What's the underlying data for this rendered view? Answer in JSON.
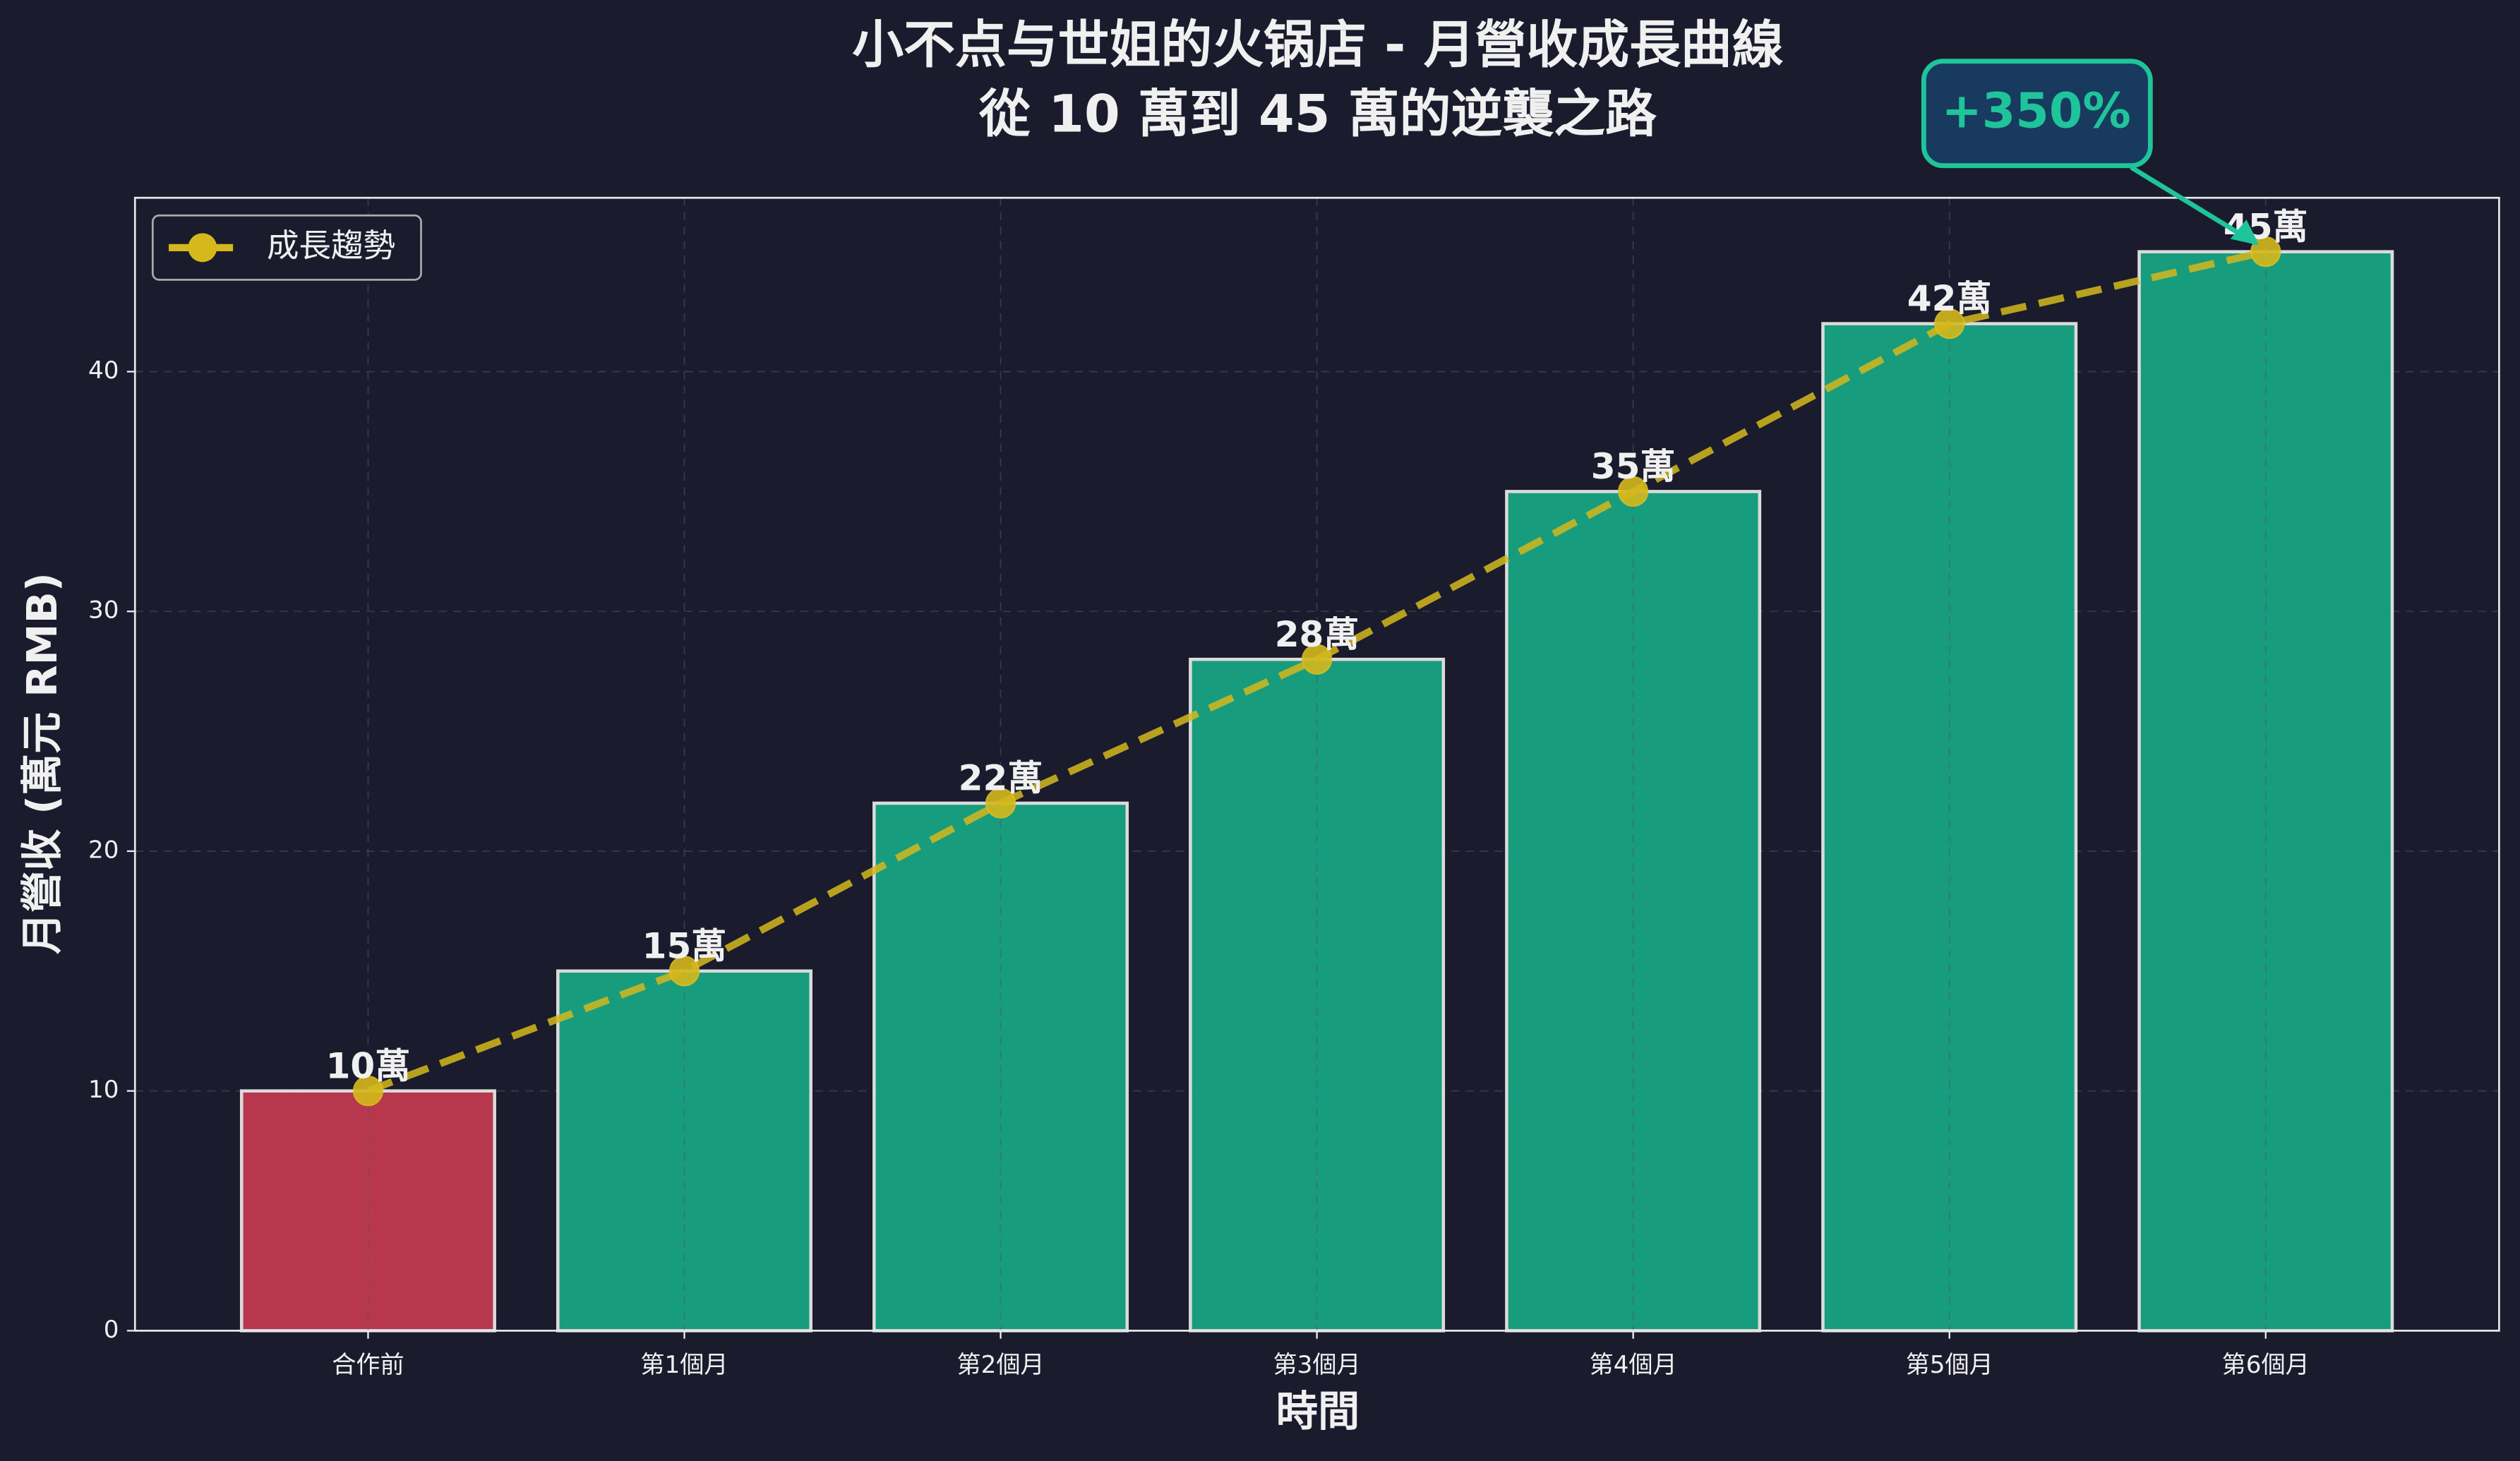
{
  "chart_data": {
    "type": "bar",
    "title": "小不点与世姐的火锅店 - 月營收成長曲線",
    "subtitle": "從 10 萬到 45 萬的逆襲之路",
    "x_label": "時間",
    "y_label": "月營收 (萬元 RMB)",
    "categories": [
      "合作前",
      "第1個月",
      "第2個月",
      "第3個月",
      "第4個月",
      "第5個月",
      "第6個月"
    ],
    "values": [
      10,
      15,
      22,
      28,
      35,
      42,
      45
    ],
    "value_labels": [
      "10萬",
      "15萬",
      "22萬",
      "28萬",
      "35萬",
      "42萬",
      "45萬"
    ],
    "colors": [
      "#c0394f",
      "#17a383",
      "#17a383",
      "#17a383",
      "#17a383",
      "#17a383",
      "#17a383"
    ],
    "line": {
      "type": "line",
      "name": "成長趨勢",
      "color": "#d4b81c",
      "values": [
        10,
        15,
        22,
        28,
        35,
        42,
        45
      ]
    },
    "annotation": "+350%",
    "ylim": [
      0,
      47.25
    ],
    "yticks": [
      0,
      10,
      20,
      30,
      40
    ],
    "grid": true,
    "legend": "upper-left"
  }
}
